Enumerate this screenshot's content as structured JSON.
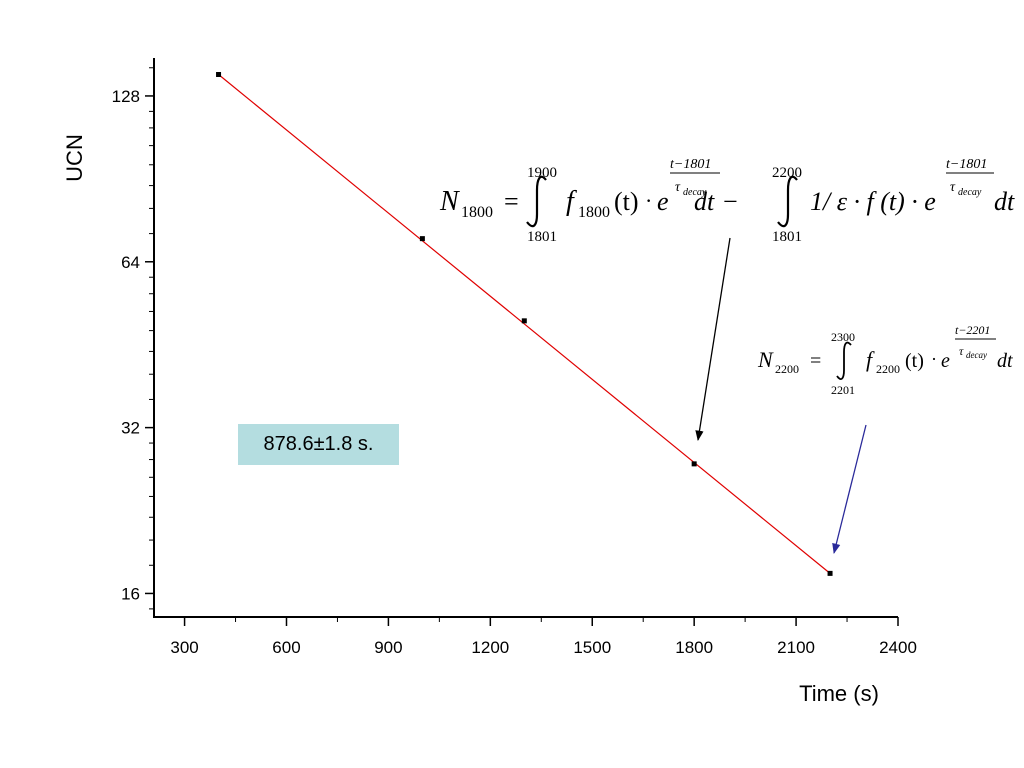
{
  "chart_data": {
    "type": "line",
    "xlabel": "Time (s)",
    "ylabel": "UCN",
    "xlim": [
      210,
      2400
    ],
    "ylim": [
      14.5,
      150
    ],
    "y_scale": "log2",
    "grid": false,
    "legend": "none",
    "x_ticks": [
      "300",
      "600",
      "900",
      "1200",
      "1500",
      "1800",
      "2100",
      "2400"
    ],
    "y_ticks": [
      "16",
      "32",
      "64",
      "128"
    ],
    "series": [
      {
        "points": [
          [
            400,
            140
          ],
          [
            1000,
            70.5
          ],
          [
            1300,
            50
          ],
          [
            1800,
            27.5
          ],
          [
            2200,
            17.4
          ]
        ],
        "fit_line": [
          [
            400,
            140
          ],
          [
            2200,
            17.4
          ]
        ],
        "marker_color": "#000000",
        "line_color": "#e00000"
      }
    ],
    "annotations": {
      "result": "878.6±1.8 s.",
      "eq1": {
        "lhs": "N",
        "lhs_sub": "1800",
        "int1_upper": "1900",
        "int1_lower": "1801",
        "f1": "f",
        "f1_sub": "1800",
        "f1_arg": "(t)",
        "exp1_num": "t−1801",
        "exp1_den": "τ",
        "exp1_den_sub": "decay",
        "dt": "dt",
        "minus": "−",
        "int2_upper": "2200",
        "int2_lower": "1801",
        "term2": "1/ ε · f (t) · e",
        "exp2_num": "t−1801",
        "exp2_den": "τ",
        "exp2_den_sub": "decay"
      },
      "eq2": {
        "lhs": "N",
        "lhs_sub": "2200",
        "int_upper": "2300",
        "int_lower": "2201",
        "f": "f",
        "f_sub": "2200",
        "f_arg": "(t)",
        "exp_num": "t−2201",
        "exp_den": "τ",
        "exp_den_sub": "decay",
        "dt": "dt"
      },
      "arrow1_color": "#000000",
      "arrow2_color": "#2a2a9a"
    }
  }
}
